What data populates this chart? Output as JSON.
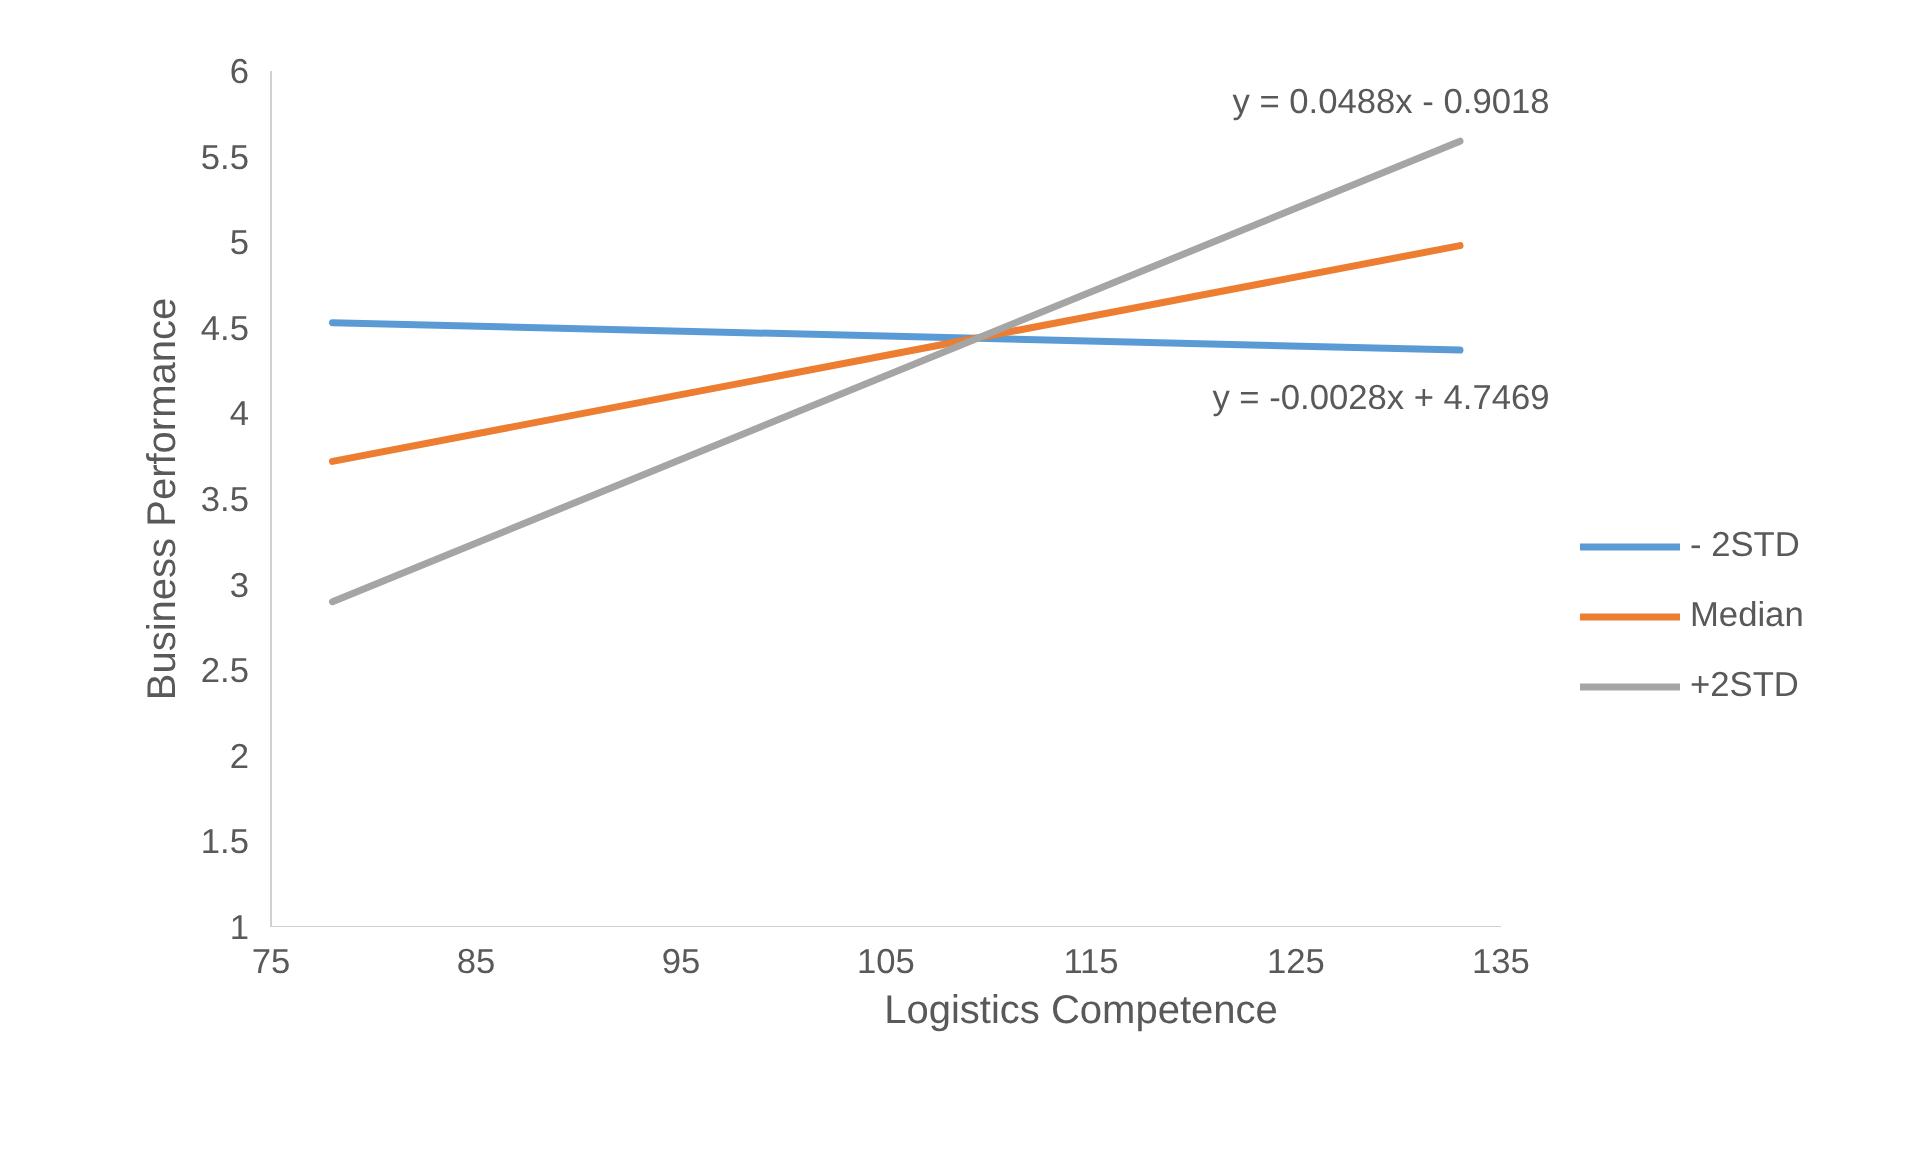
{
  "chart_data": {
    "type": "line",
    "xlabel": "Logistics Competence",
    "ylabel": "Business Performance",
    "x": [
      78,
      133
    ],
    "series": [
      {
        "name": "- 2STD",
        "color": "#5b9bd5",
        "values": [
          4.53,
          4.37
        ]
      },
      {
        "name": "Median",
        "color": "#ed7d31",
        "values": [
          3.72,
          4.98
        ]
      },
      {
        "name": "+2STD",
        "color": "#a5a5a5",
        "values": [
          2.9,
          5.59
        ]
      }
    ],
    "annotations": [
      "y = 0.0488x - 0.9018",
      "y = -0.0028x + 4.7469"
    ],
    "xlim": [
      75,
      135
    ],
    "xticks": [
      75,
      85,
      95,
      105,
      115,
      125,
      135
    ],
    "ylim": [
      1,
      6
    ],
    "yticks": [
      1,
      1.5,
      2,
      2.5,
      3,
      3.5,
      4,
      4.5,
      5,
      5.5,
      6
    ],
    "grid": false,
    "legend": "right",
    "marker": "none",
    "line_style": "solid"
  }
}
